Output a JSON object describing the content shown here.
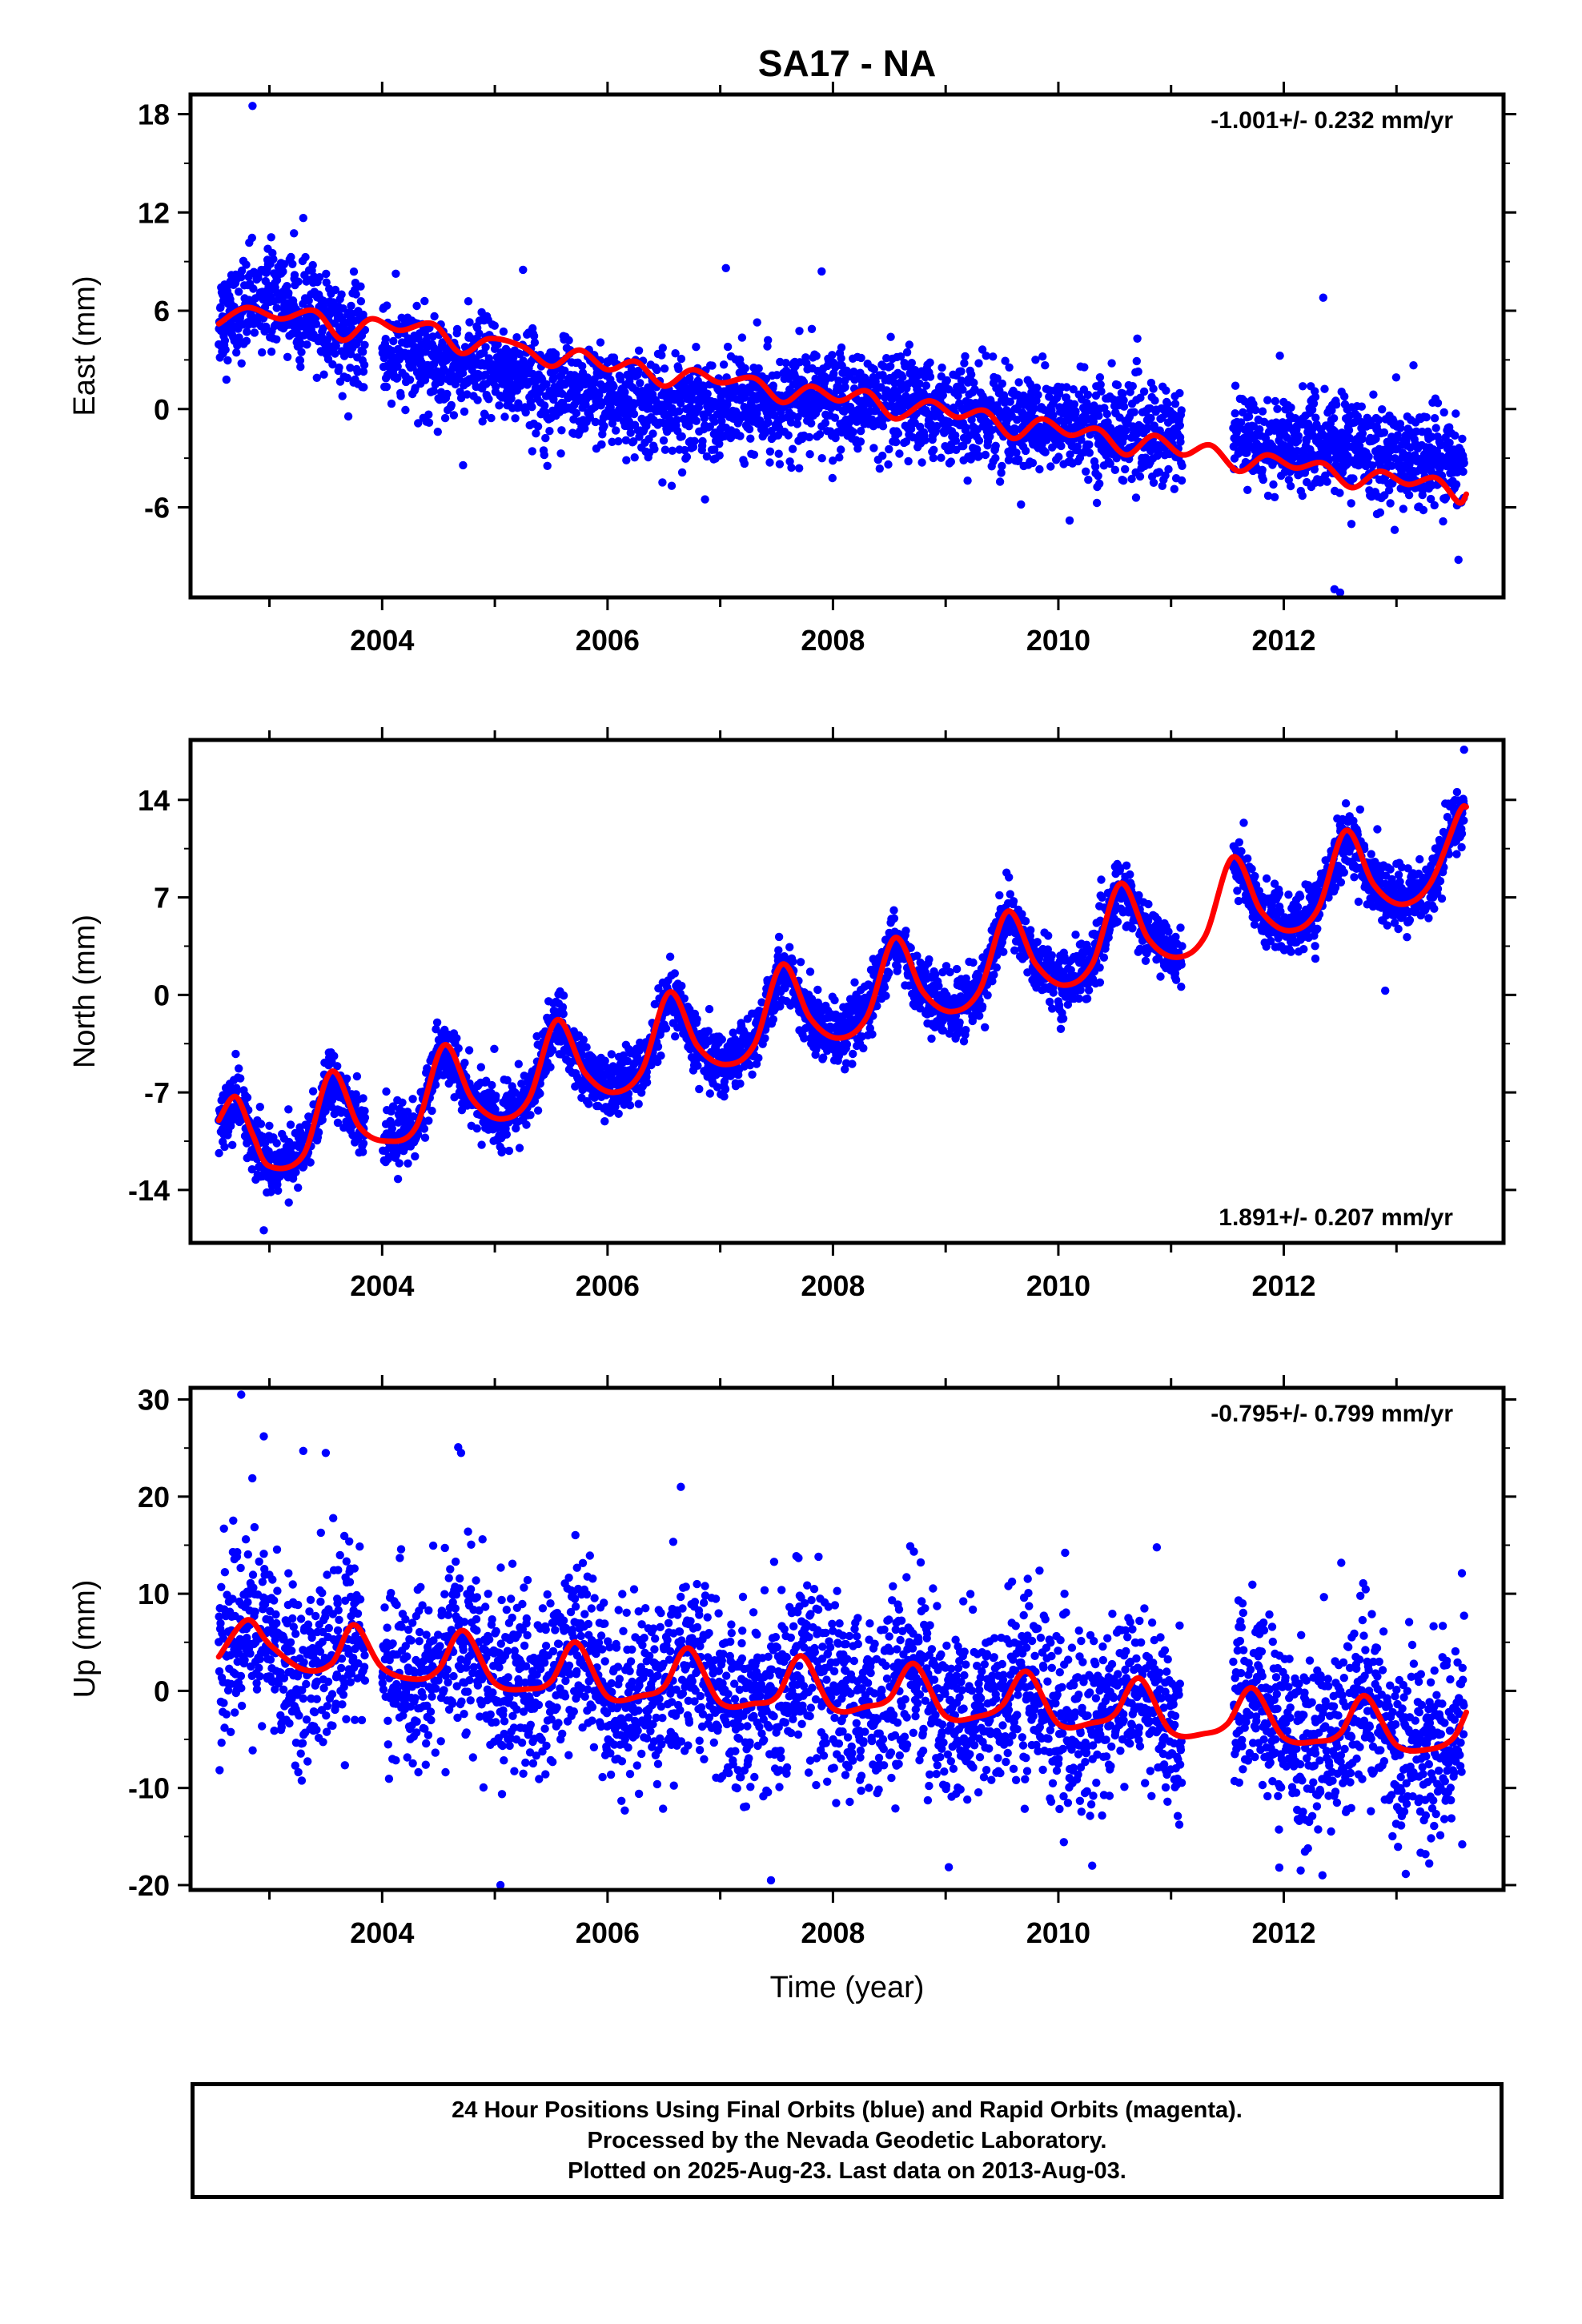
{
  "title": "SA17 - NA",
  "colors": {
    "final_orbits": "#0000ff",
    "model_fit": "#ff0000",
    "frame": "#000000"
  },
  "chart_data": [
    {
      "type": "scatter",
      "ylabel": "East (mm)",
      "xlabel": "",
      "rate_text": "-1.001+/- 0.232 mm/yr",
      "rate_position": "top-right",
      "xlim": [
        2002.3,
        2013.95
      ],
      "ylim": [
        -11.5,
        19.2
      ],
      "x_ticks": [
        2004,
        2006,
        2008,
        2010,
        2012
      ],
      "x_tick_labels": [
        "2004",
        "2006",
        "2008",
        "2010",
        "2012"
      ],
      "y_ticks": [
        18,
        12,
        6,
        0,
        -6
      ],
      "y_tick_labels": [
        "18",
        "12",
        "6",
        "0",
        "-6"
      ],
      "data_span": [
        2002.55,
        2013.6
      ],
      "gaps": [
        [
          2003.85,
          2004.0
        ],
        [
          2011.1,
          2011.55
        ]
      ],
      "series": [
        {
          "name": "Final Orbits",
          "role": "daily positions",
          "color": "#0000ff",
          "trend_points": [
            [
              2002.55,
              5.5
            ],
            [
              2003.0,
              7.0
            ],
            [
              2004.0,
              3.5
            ],
            [
              2005.2,
              2.0
            ],
            [
              2006.5,
              0.0
            ],
            [
              2008.0,
              0.5
            ],
            [
              2010.0,
              -1.0
            ],
            [
              2011.6,
              -2.0
            ],
            [
              2012.5,
              -2.3
            ],
            [
              2013.6,
              -3.5
            ]
          ],
          "scatter_sd": 1.5,
          "outliers": [
            [
              2002.85,
              18.5
            ],
            [
              2005.25,
              8.5
            ],
            [
              2007.05,
              8.6
            ],
            [
              2007.9,
              8.4
            ],
            [
              2010.1,
              -6.8
            ],
            [
              2012.45,
              -11.0
            ],
            [
              2012.5,
              -11.2
            ],
            [
              2013.55,
              -9.2
            ],
            [
              2012.35,
              6.8
            ]
          ]
        },
        {
          "name": "Model fit",
          "role": "fitted curve",
          "color": "#ff0000",
          "points": [
            [
              2002.55,
              5.2
            ],
            [
              2002.8,
              6.2
            ],
            [
              2003.1,
              5.5
            ],
            [
              2003.4,
              6.0
            ],
            [
              2003.65,
              4.2
            ],
            [
              2003.9,
              5.5
            ],
            [
              2004.15,
              4.8
            ],
            [
              2004.45,
              5.2
            ],
            [
              2004.7,
              3.4
            ],
            [
              2004.95,
              4.3
            ],
            [
              2005.25,
              3.8
            ],
            [
              2005.5,
              2.6
            ],
            [
              2005.75,
              3.6
            ],
            [
              2006.0,
              2.4
            ],
            [
              2006.25,
              2.9
            ],
            [
              2006.5,
              1.4
            ],
            [
              2006.75,
              2.4
            ],
            [
              2007.0,
              1.6
            ],
            [
              2007.3,
              1.9
            ],
            [
              2007.55,
              0.4
            ],
            [
              2007.8,
              1.4
            ],
            [
              2008.05,
              0.5
            ],
            [
              2008.3,
              1.1
            ],
            [
              2008.55,
              -0.6
            ],
            [
              2008.85,
              0.5
            ],
            [
              2009.1,
              -0.5
            ],
            [
              2009.35,
              -0.1
            ],
            [
              2009.6,
              -1.8
            ],
            [
              2009.85,
              -0.6
            ],
            [
              2010.1,
              -1.6
            ],
            [
              2010.35,
              -1.2
            ],
            [
              2010.6,
              -2.8
            ],
            [
              2010.85,
              -1.6
            ],
            [
              2011.1,
              -2.8
            ],
            [
              2011.35,
              -2.2
            ],
            [
              2011.6,
              -3.8
            ],
            [
              2011.85,
              -2.8
            ],
            [
              2012.1,
              -3.6
            ],
            [
              2012.35,
              -3.3
            ],
            [
              2012.6,
              -4.8
            ],
            [
              2012.85,
              -3.8
            ],
            [
              2013.1,
              -4.6
            ],
            [
              2013.35,
              -4.2
            ],
            [
              2013.55,
              -5.7
            ],
            [
              2013.62,
              -5.2
            ]
          ]
        }
      ]
    },
    {
      "type": "scatter",
      "ylabel": "North (mm)",
      "xlabel": "",
      "rate_text": "1.891+/- 0.207 mm/yr",
      "rate_position": "bottom-right",
      "xlim": [
        2002.3,
        2013.95
      ],
      "ylim": [
        -17.8,
        18.3
      ],
      "x_ticks": [
        2004,
        2006,
        2008,
        2010,
        2012
      ],
      "x_tick_labels": [
        "2004",
        "2006",
        "2008",
        "2010",
        "2012"
      ],
      "y_ticks": [
        14,
        7,
        0,
        -7,
        -14
      ],
      "y_tick_labels": [
        "14",
        "7",
        "0",
        "-7",
        "-14"
      ],
      "data_span": [
        2002.55,
        2013.6
      ],
      "gaps": [
        [
          2003.85,
          2004.0
        ],
        [
          2011.1,
          2011.55
        ]
      ],
      "series": [
        {
          "name": "Final Orbits",
          "role": "daily positions",
          "color": "#0000ff",
          "scatter_sd": 1.1,
          "outliers": [
            [
              2002.95,
              -16.9
            ],
            [
              2012.9,
              0.3
            ],
            [
              2013.6,
              17.6
            ]
          ]
        },
        {
          "name": "Model fit",
          "role": "fitted curve",
          "color": "#ff0000",
          "points": [
            [
              2002.55,
              -9.0
            ],
            [
              2002.7,
              -7.3
            ],
            [
              2002.85,
              -10.0
            ],
            [
              2003.0,
              -12.3
            ],
            [
              2003.3,
              -11.5
            ],
            [
              2003.55,
              -5.5
            ],
            [
              2003.8,
              -9.5
            ],
            [
              2004.05,
              -10.5
            ],
            [
              2004.3,
              -9.5
            ],
            [
              2004.55,
              -3.6
            ],
            [
              2004.8,
              -7.5
            ],
            [
              2005.05,
              -8.9
            ],
            [
              2005.3,
              -7.5
            ],
            [
              2005.55,
              -1.8
            ],
            [
              2005.8,
              -5.6
            ],
            [
              2006.05,
              -7.0
            ],
            [
              2006.3,
              -5.5
            ],
            [
              2006.55,
              0.2
            ],
            [
              2006.8,
              -3.7
            ],
            [
              2007.05,
              -5.0
            ],
            [
              2007.3,
              -3.6
            ],
            [
              2007.55,
              2.2
            ],
            [
              2007.8,
              -1.7
            ],
            [
              2008.05,
              -3.1
            ],
            [
              2008.3,
              -1.6
            ],
            [
              2008.55,
              4.1
            ],
            [
              2008.8,
              0.2
            ],
            [
              2009.05,
              -1.2
            ],
            [
              2009.3,
              0.3
            ],
            [
              2009.55,
              6.0
            ],
            [
              2009.8,
              2.2
            ],
            [
              2010.05,
              0.7
            ],
            [
              2010.3,
              2.2
            ],
            [
              2010.55,
              8.0
            ],
            [
              2010.8,
              4.0
            ],
            [
              2011.05,
              2.7
            ],
            [
              2011.3,
              4.2
            ],
            [
              2011.55,
              9.9
            ],
            [
              2011.8,
              6.0
            ],
            [
              2012.05,
              4.6
            ],
            [
              2012.3,
              6.1
            ],
            [
              2012.55,
              11.8
            ],
            [
              2012.8,
              7.9
            ],
            [
              2013.05,
              6.5
            ],
            [
              2013.3,
              8.0
            ],
            [
              2013.55,
              13.0
            ],
            [
              2013.62,
              13.5
            ]
          ]
        }
      ]
    },
    {
      "type": "scatter",
      "ylabel": "Up (mm)",
      "xlabel": "Time (year)",
      "rate_text": "-0.795+/- 0.799 mm/yr",
      "rate_position": "top-right",
      "xlim": [
        2002.3,
        2013.95
      ],
      "ylim": [
        -20.5,
        31.2
      ],
      "x_ticks": [
        2004,
        2006,
        2008,
        2010,
        2012
      ],
      "x_tick_labels": [
        "2004",
        "2006",
        "2008",
        "2010",
        "2012"
      ],
      "y_ticks": [
        30,
        20,
        10,
        0,
        -10,
        -20
      ],
      "y_tick_labels": [
        "30",
        "20",
        "10",
        "0",
        "-10",
        "-20"
      ],
      "data_span": [
        2002.55,
        2013.6
      ],
      "gaps": [
        [
          2003.85,
          2004.0
        ],
        [
          2011.1,
          2011.55
        ]
      ],
      "series": [
        {
          "name": "Final Orbits",
          "role": "daily positions",
          "color": "#0000ff",
          "scatter_sd": 4.6,
          "outliers": [
            [
              2002.75,
              30.5
            ],
            [
              2002.95,
              26.2
            ],
            [
              2003.3,
              24.7
            ],
            [
              2003.5,
              24.5
            ],
            [
              2004.7,
              24.5
            ],
            [
              2006.65,
              21.0
            ],
            [
              2005.05,
              -20.0
            ],
            [
              2007.45,
              -19.5
            ],
            [
              2010.3,
              -18.0
            ],
            [
              2012.15,
              -18.5
            ]
          ]
        },
        {
          "name": "Model fit",
          "role": "fitted curve",
          "color": "#ff0000",
          "points": [
            [
              2002.55,
              3.5
            ],
            [
              2002.8,
              7.3
            ],
            [
              2003.0,
              4.8
            ],
            [
              2003.3,
              2.2
            ],
            [
              2003.55,
              2.8
            ],
            [
              2003.75,
              6.8
            ],
            [
              2004.0,
              2.4
            ],
            [
              2004.3,
              1.2
            ],
            [
              2004.5,
              2.2
            ],
            [
              2004.72,
              6.2
            ],
            [
              2005.0,
              0.8
            ],
            [
              2005.3,
              0.2
            ],
            [
              2005.5,
              1.0
            ],
            [
              2005.72,
              5.0
            ],
            [
              2006.0,
              -0.6
            ],
            [
              2006.3,
              -0.5
            ],
            [
              2006.5,
              0.4
            ],
            [
              2006.72,
              4.4
            ],
            [
              2007.0,
              -1.2
            ],
            [
              2007.3,
              -1.3
            ],
            [
              2007.5,
              -0.6
            ],
            [
              2007.72,
              3.6
            ],
            [
              2008.0,
              -1.8
            ],
            [
              2008.3,
              -1.6
            ],
            [
              2008.5,
              -0.8
            ],
            [
              2008.72,
              2.8
            ],
            [
              2009.0,
              -2.6
            ],
            [
              2009.3,
              -2.6
            ],
            [
              2009.5,
              -1.5
            ],
            [
              2009.72,
              2.0
            ],
            [
              2010.0,
              -3.4
            ],
            [
              2010.3,
              -3.3
            ],
            [
              2010.5,
              -2.4
            ],
            [
              2010.72,
              1.3
            ],
            [
              2011.0,
              -4.2
            ],
            [
              2011.3,
              -4.4
            ],
            [
              2011.5,
              -3.4
            ],
            [
              2011.72,
              0.3
            ],
            [
              2012.0,
              -4.8
            ],
            [
              2012.3,
              -5.2
            ],
            [
              2012.5,
              -4.4
            ],
            [
              2012.72,
              -0.5
            ],
            [
              2013.0,
              -5.6
            ],
            [
              2013.3,
              -6.0
            ],
            [
              2013.5,
              -4.9
            ],
            [
              2013.62,
              -2.2
            ]
          ]
        }
      ]
    }
  ],
  "footer": {
    "line1": "24 Hour Positions Using Final Orbits (blue) and Rapid Orbits (magenta).",
    "line2": "Processed by the Nevada Geodetic Laboratory.",
    "line3": "Plotted on 2025-Aug-23. Last data on 2013-Aug-03."
  }
}
